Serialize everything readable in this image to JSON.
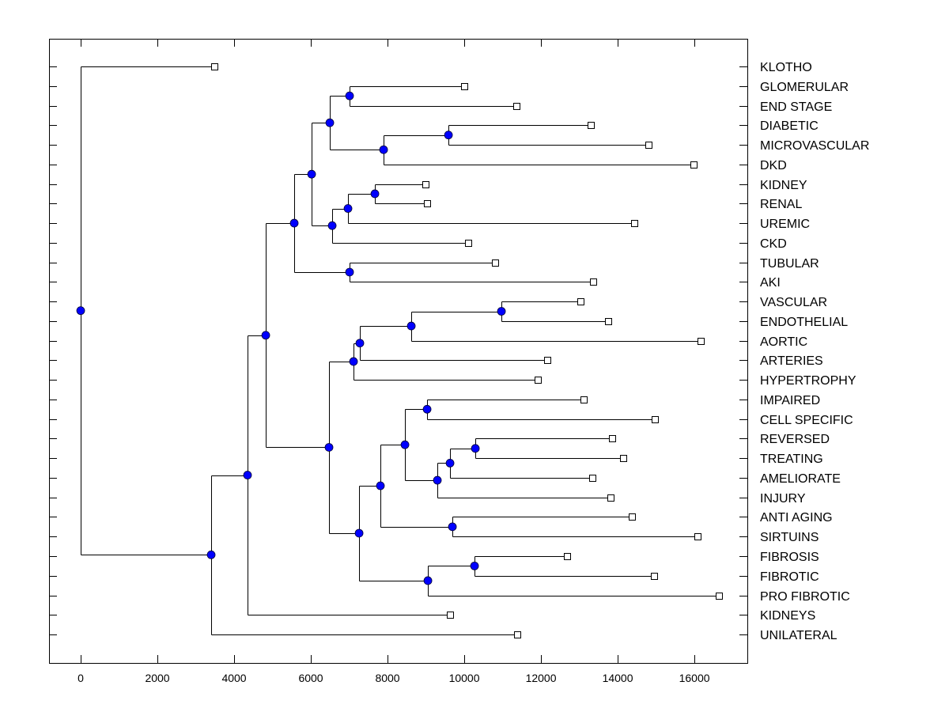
{
  "chart_data": {
    "type": "dendrogram",
    "title": "",
    "xlabel": "",
    "ylabel": "",
    "xlim": [
      -825,
      17380
    ],
    "xticks": [
      0,
      2000,
      4000,
      6000,
      8000,
      10000,
      12000,
      14000,
      16000
    ],
    "xtick_labels": [
      "0",
      "2000",
      "4000",
      "6000",
      "8000",
      "10000",
      "12000",
      "14000",
      "16000"
    ],
    "grid": false,
    "node_color": "#0000ff",
    "leaf_marker": "open-square",
    "label_position": "right",
    "leaves": [
      {
        "label": "KLOTHO",
        "value": 3402
      },
      {
        "label": "GLOMERULAR",
        "value": 9918
      },
      {
        "label": "END STAGE",
        "value": 11278
      },
      {
        "label": "DIABETIC",
        "value": 13216
      },
      {
        "label": "MICROVASCULAR",
        "value": 14722
      },
      {
        "label": "DKD",
        "value": 15897
      },
      {
        "label": "KIDNEY",
        "value": 8907
      },
      {
        "label": "RENAL",
        "value": 8948
      },
      {
        "label": "UREMIC",
        "value": 14351
      },
      {
        "label": "CKD",
        "value": 10021
      },
      {
        "label": "TUBULAR",
        "value": 10722
      },
      {
        "label": "AKI",
        "value": 13278
      },
      {
        "label": "VASCULAR",
        "value": 12948
      },
      {
        "label": "ENDOTHELIAL",
        "value": 13670
      },
      {
        "label": "AORTIC",
        "value": 16082
      },
      {
        "label": "ARTERIES",
        "value": 12082
      },
      {
        "label": "HYPERTROPHY",
        "value": 11835
      },
      {
        "label": "IMPAIRED",
        "value": 13031
      },
      {
        "label": "CELL SPECIFIC",
        "value": 14887
      },
      {
        "label": "REVERSED",
        "value": 13773
      },
      {
        "label": "TREATING",
        "value": 14062
      },
      {
        "label": "AMELIORATE",
        "value": 13258
      },
      {
        "label": "INJURY",
        "value": 13732
      },
      {
        "label": "ANTI AGING",
        "value": 14289
      },
      {
        "label": "SIRTUINS",
        "value": 16000
      },
      {
        "label": "FIBROSIS",
        "value": 12598
      },
      {
        "label": "FIBROTIC",
        "value": 14866
      },
      {
        "label": "PRO FIBROTIC",
        "value": 16557
      },
      {
        "label": "KIDNEYS",
        "value": 9546
      },
      {
        "label": "UNILATERAL",
        "value": 11299
      }
    ],
    "tree": {
      "value": 0,
      "children": [
        {
          "leaf": 0
        },
        {
          "value": 3402,
          "children": [
            {
              "value": 4350,
              "children": [
                {
                  "value": 4825,
                  "children": [
                    {
                      "value": 5567,
                      "children": [
                        {
                          "value": 6021,
                          "children": [
                            {
                              "value": 6495,
                              "children": [
                                {
                                  "value": 7010,
                                  "children": [
                                    {
                                      "leaf": 1
                                    },
                                    {
                                      "leaf": 2
                                    }
                                  ]
                                },
                                {
                                  "value": 7897,
                                  "children": [
                                    {
                                      "value": 9588,
                                      "children": [
                                        {
                                          "leaf": 3
                                        },
                                        {
                                          "leaf": 4
                                        }
                                      ]
                                    },
                                    {
                                      "leaf": 5
                                    }
                                  ]
                                }
                              ]
                            },
                            {
                              "value": 6557,
                              "children": [
                                {
                                  "value": 6969,
                                  "children": [
                                    {
                                      "value": 7670,
                                      "children": [
                                        {
                                          "leaf": 6
                                        },
                                        {
                                          "leaf": 7
                                        }
                                      ]
                                    },
                                    {
                                      "leaf": 8
                                    }
                                  ]
                                },
                                {
                                  "leaf": 9
                                }
                              ]
                            }
                          ]
                        },
                        {
                          "value": 7010,
                          "children": [
                            {
                              "leaf": 10
                            },
                            {
                              "leaf": 11
                            }
                          ]
                        }
                      ]
                    },
                    {
                      "value": 6474,
                      "children": [
                        {
                          "value": 7113,
                          "children": [
                            {
                              "value": 7278,
                              "children": [
                                {
                                  "value": 8619,
                                  "children": [
                                    {
                                      "value": 10969,
                                      "children": [
                                        {
                                          "leaf": 12
                                        },
                                        {
                                          "leaf": 13
                                        }
                                      ]
                                    },
                                    {
                                      "leaf": 14
                                    }
                                  ]
                                },
                                {
                                  "leaf": 15
                                }
                              ]
                            },
                            {
                              "leaf": 16
                            }
                          ]
                        },
                        {
                          "value": 7258,
                          "children": [
                            {
                              "value": 7814,
                              "children": [
                                {
                                  "value": 8454,
                                  "children": [
                                    {
                                      "value": 9031,
                                      "children": [
                                        {
                                          "leaf": 17
                                        },
                                        {
                                          "leaf": 18
                                        }
                                      ]
                                    },
                                    {
                                      "value": 9299,
                                      "children": [
                                        {
                                          "value": 9629,
                                          "children": [
                                            {
                                              "value": 10289,
                                              "children": [
                                                {
                                                  "leaf": 19
                                                },
                                                {
                                                  "leaf": 20
                                                }
                                              ]
                                            },
                                            {
                                              "leaf": 21
                                            }
                                          ]
                                        },
                                        {
                                          "leaf": 22
                                        }
                                      ]
                                    }
                                  ]
                                },
                                {
                                  "value": 9691,
                                  "children": [
                                    {
                                      "leaf": 23
                                    },
                                    {
                                      "leaf": 24
                                    }
                                  ]
                                }
                              ]
                            },
                            {
                              "value": 9052,
                              "children": [
                                {
                                  "value": 10268,
                                  "children": [
                                    {
                                      "leaf": 25
                                    },
                                    {
                                      "leaf": 26
                                    }
                                  ]
                                },
                                {
                                  "leaf": 27
                                }
                              ]
                            }
                          ]
                        }
                      ]
                    }
                  ]
                },
                {
                  "leaf": 28
                }
              ]
            },
            {
              "leaf": 29
            }
          ]
        }
      ]
    }
  }
}
